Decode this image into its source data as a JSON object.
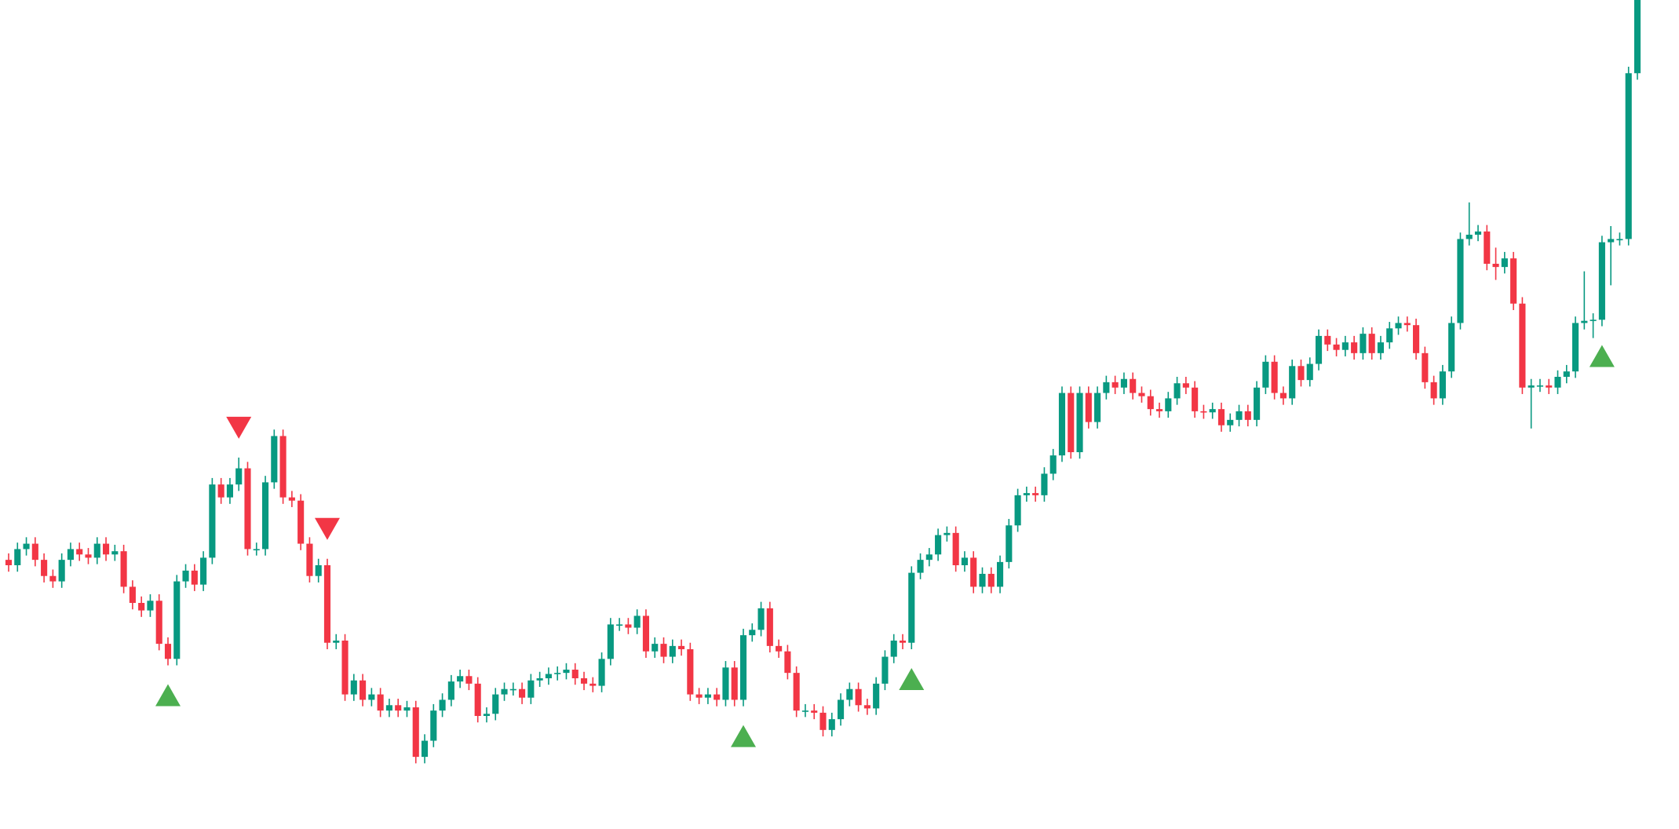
{
  "chart_data": {
    "type": "candlestick",
    "ylim": [
      0,
      770
    ],
    "up_color": "#089981",
    "down_color": "#f23645",
    "buy_color": "#4caf50",
    "sell_color": "#f23645",
    "open": [
      250,
      245,
      260,
      265,
      250,
      235,
      230,
      250,
      260,
      255,
      252,
      265,
      255,
      258,
      225,
      210,
      203,
      212,
      172,
      158,
      230,
      240,
      227,
      252,
      320,
      308,
      320,
      335,
      260,
      260,
      322,
      365,
      308,
      305,
      265,
      235,
      245,
      173,
      175,
      125,
      138,
      120,
      125,
      110,
      115,
      110,
      113,
      67,
      82,
      110,
      120,
      137,
      142,
      135,
      105,
      107,
      125,
      130,
      130,
      122,
      138,
      140,
      144,
      145,
      148,
      140,
      135,
      133,
      158,
      190,
      190,
      187,
      198,
      165,
      172,
      160,
      170,
      167,
      125,
      122,
      125,
      120,
      150,
      120,
      180,
      185,
      205,
      170,
      165,
      145,
      110,
      110,
      108,
      92,
      102,
      120,
      130,
      115,
      112,
      135,
      160,
      175,
      173,
      238,
      250,
      255,
      273,
      275,
      245,
      252,
      225,
      237,
      225,
      248,
      282,
      310,
      312,
      310,
      330,
      347,
      405,
      350,
      405,
      378,
      405,
      415,
      410,
      418,
      405,
      402,
      390,
      388,
      400,
      414,
      410,
      388,
      387,
      390,
      375,
      380,
      388,
      380,
      410,
      434,
      405,
      400,
      430,
      417,
      432,
      458,
      450,
      445,
      452,
      442,
      460,
      442,
      452,
      465,
      470,
      468,
      442,
      415,
      400,
      425,
      470,
      548,
      552,
      555,
      525,
      522,
      530,
      488,
      410,
      412,
      412,
      410,
      420,
      425,
      470,
      472,
      473,
      545,
      548,
      548,
      702
    ],
    "high": [
      256,
      266,
      271,
      271,
      256,
      241,
      256,
      266,
      266,
      261,
      271,
      271,
      264,
      264,
      231,
      216,
      218,
      218,
      178,
      236,
      246,
      246,
      258,
      326,
      326,
      326,
      345,
      341,
      266,
      328,
      371,
      371,
      314,
      311,
      271,
      251,
      251,
      181,
      181,
      144,
      144,
      131,
      131,
      121,
      121,
      119,
      119,
      88,
      116,
      126,
      143,
      148,
      148,
      141,
      113,
      131,
      136,
      136,
      136,
      144,
      146,
      150,
      151,
      154,
      154,
      146,
      141,
      164,
      196,
      196,
      196,
      204,
      204,
      178,
      178,
      176,
      176,
      173,
      131,
      131,
      131,
      156,
      156,
      186,
      191,
      211,
      211,
      176,
      171,
      151,
      116,
      116,
      114,
      108,
      126,
      136,
      136,
      121,
      141,
      166,
      181,
      181,
      244,
      256,
      261,
      279,
      281,
      281,
      258,
      258,
      243,
      243,
      254,
      288,
      316,
      318,
      318,
      336,
      353,
      411,
      411,
      411,
      411,
      411,
      421,
      421,
      424,
      424,
      411,
      408,
      396,
      406,
      420,
      420,
      416,
      394,
      396,
      396,
      386,
      394,
      394,
      416,
      440,
      440,
      411,
      436,
      436,
      438,
      464,
      464,
      456,
      458,
      458,
      466,
      466,
      458,
      471,
      476,
      476,
      474,
      448,
      421,
      431,
      476,
      554,
      582,
      561,
      561,
      540,
      536,
      536,
      494,
      418,
      418,
      418,
      426,
      431,
      476,
      518,
      479,
      551,
      560,
      554,
      708,
      770
    ],
    "low": [
      239,
      239,
      254,
      244,
      229,
      224,
      224,
      244,
      249,
      246,
      246,
      249,
      249,
      219,
      204,
      197,
      197,
      166,
      152,
      152,
      224,
      221,
      221,
      246,
      302,
      302,
      314,
      254,
      254,
      254,
      316,
      302,
      299,
      259,
      229,
      229,
      167,
      167,
      119,
      119,
      114,
      114,
      104,
      104,
      104,
      104,
      61,
      61,
      76,
      104,
      114,
      131,
      129,
      99,
      99,
      101,
      119,
      124,
      116,
      116,
      132,
      134,
      138,
      139,
      134,
      129,
      127,
      127,
      152,
      184,
      181,
      181,
      159,
      159,
      154,
      154,
      161,
      119,
      116,
      116,
      114,
      114,
      114,
      114,
      174,
      179,
      164,
      159,
      139,
      104,
      104,
      102,
      86,
      86,
      96,
      114,
      109,
      106,
      106,
      129,
      154,
      167,
      167,
      232,
      244,
      249,
      267,
      239,
      239,
      219,
      219,
      219,
      219,
      242,
      276,
      304,
      304,
      304,
      324,
      341,
      344,
      344,
      372,
      372,
      399,
      404,
      404,
      399,
      396,
      384,
      382,
      382,
      394,
      404,
      382,
      381,
      381,
      369,
      369,
      374,
      374,
      374,
      404,
      399,
      394,
      394,
      411,
      411,
      426,
      444,
      439,
      439,
      436,
      436,
      436,
      436,
      446,
      459,
      462,
      436,
      409,
      394,
      394,
      419,
      464,
      542,
      546,
      519,
      510,
      516,
      482,
      404,
      372,
      406,
      404,
      404,
      414,
      419,
      464,
      456,
      467,
      505,
      542,
      542,
      696
    ],
    "close": [
      245,
      260,
      265,
      250,
      235,
      230,
      250,
      260,
      255,
      252,
      265,
      255,
      258,
      225,
      210,
      203,
      212,
      172,
      158,
      230,
      240,
      227,
      252,
      320,
      308,
      320,
      335,
      260,
      260,
      322,
      365,
      308,
      305,
      265,
      235,
      245,
      173,
      175,
      125,
      138,
      120,
      125,
      110,
      115,
      110,
      113,
      67,
      82,
      110,
      120,
      137,
      142,
      135,
      105,
      107,
      125,
      130,
      130,
      122,
      138,
      140,
      144,
      145,
      148,
      140,
      135,
      133,
      158,
      190,
      190,
      187,
      198,
      165,
      172,
      160,
      170,
      167,
      125,
      122,
      125,
      120,
      150,
      120,
      180,
      185,
      205,
      170,
      165,
      145,
      110,
      110,
      108,
      92,
      102,
      120,
      130,
      115,
      112,
      135,
      160,
      175,
      173,
      238,
      250,
      255,
      273,
      275,
      245,
      252,
      225,
      237,
      225,
      248,
      282,
      310,
      312,
      310,
      330,
      347,
      405,
      350,
      405,
      378,
      405,
      415,
      410,
      418,
      405,
      402,
      390,
      388,
      400,
      414,
      410,
      388,
      387,
      390,
      375,
      380,
      388,
      380,
      410,
      434,
      405,
      400,
      430,
      417,
      432,
      458,
      450,
      445,
      452,
      442,
      460,
      442,
      452,
      465,
      470,
      468,
      442,
      415,
      400,
      425,
      470,
      548,
      552,
      555,
      525,
      522,
      530,
      488,
      410,
      412,
      412,
      410,
      420,
      425,
      470,
      472,
      473,
      545,
      548,
      548,
      702,
      770
    ],
    "buy_signals": [
      18,
      83,
      102,
      180
    ],
    "sell_signals": [
      26,
      36
    ]
  }
}
